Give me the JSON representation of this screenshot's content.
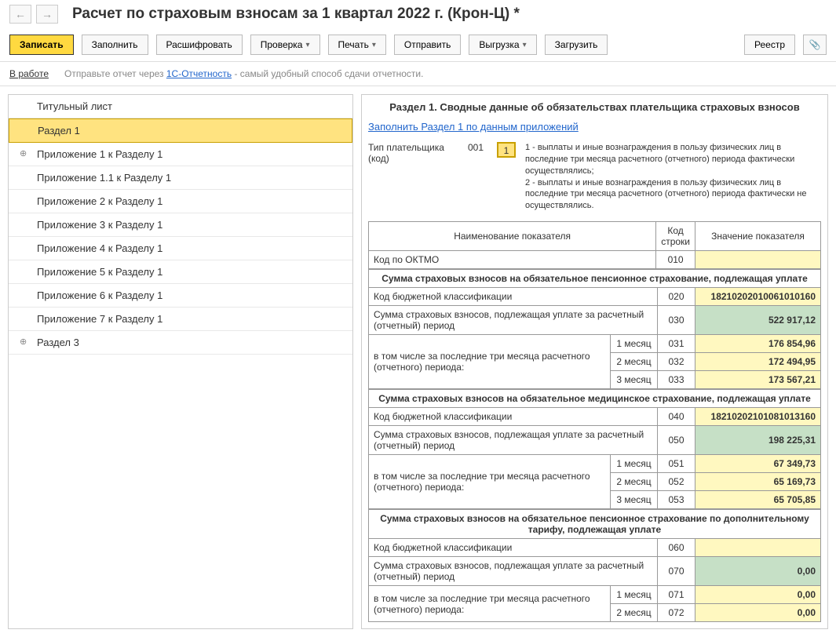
{
  "title": "Расчет по страховым взносам за 1 квартал 2022 г. (Крон-Ц) *",
  "toolbar": {
    "save": "Записать",
    "fill": "Заполнить",
    "decrypt": "Расшифровать",
    "check": "Проверка",
    "print": "Печать",
    "send": "Отправить",
    "export": "Выгрузка",
    "load": "Загрузить",
    "registry": "Реестр"
  },
  "status": {
    "label": "В работе",
    "hint_prefix": "Отправьте отчет через ",
    "hint_link": "1С-Отчетность",
    "hint_suffix": " - самый удобный способ сдачи отчетности."
  },
  "nav": {
    "items": [
      "Титульный лист",
      "Раздел 1",
      "Приложение 1 к Разделу 1",
      "Приложение 1.1 к Разделу 1",
      "Приложение 2 к Разделу 1",
      "Приложение 3 к Разделу 1",
      "Приложение 4 к Разделу 1",
      "Приложение 5 к Разделу 1",
      "Приложение 6 к Разделу 1",
      "Приложение 7 к Разделу 1",
      "Раздел 3"
    ]
  },
  "main": {
    "section_title": "Раздел 1. Сводные данные об обязательствах плательщика страховых взносов",
    "fill_link": "Заполнить Раздел 1 по данным приложений",
    "payer": {
      "label": "Тип плательщика (код)",
      "code": "001",
      "value": "1",
      "desc": "1 - выплаты и иные вознаграждения в пользу физических лиц в последние три месяца расчетного (отчетного) периода фактически осуществлялись;\n2 - выплаты и иные вознаграждения в пользу физических лиц в последние три месяца расчетного (отчетного) периода фактически не осуществлялись."
    },
    "headers": {
      "name": "Наименование показателя",
      "code": "Код строки",
      "value": "Значение показателя"
    },
    "row_oktmo": {
      "name": "Код по ОКТМО",
      "code": "010",
      "value": ""
    },
    "groups": [
      {
        "title": "Сумма страховых взносов на обязательное пенсионное страхование, подлежащая уплате",
        "kbk": {
          "name": "Код бюджетной классификации",
          "code": "020",
          "value": "18210202010061010160",
          "bg": "yellow"
        },
        "total": {
          "name": "Сумма страховых взносов, подлежащая уплате за расчетный (отчетный) период",
          "code": "030",
          "value": "522 917,12",
          "bg": "green"
        },
        "months_label": "в том числе за последние три месяца расчетного (отчетного) периода:",
        "months": [
          {
            "label": "1 месяц",
            "code": "031",
            "value": "176 854,96"
          },
          {
            "label": "2 месяц",
            "code": "032",
            "value": "172 494,95"
          },
          {
            "label": "3 месяц",
            "code": "033",
            "value": "173 567,21"
          }
        ]
      },
      {
        "title": "Сумма страховых взносов на обязательное медицинское страхование, подлежащая уплате",
        "kbk": {
          "name": "Код бюджетной классификации",
          "code": "040",
          "value": "18210202101081013160",
          "bg": "yellow"
        },
        "total": {
          "name": "Сумма страховых взносов, подлежащая уплате за расчетный (отчетный) период",
          "code": "050",
          "value": "198 225,31",
          "bg": "green"
        },
        "months_label": "в том числе за последние три месяца расчетного (отчетного) периода:",
        "months": [
          {
            "label": "1 месяц",
            "code": "051",
            "value": "67 349,73"
          },
          {
            "label": "2 месяц",
            "code": "052",
            "value": "65 169,73"
          },
          {
            "label": "3 месяц",
            "code": "053",
            "value": "65 705,85"
          }
        ]
      },
      {
        "title": "Сумма страховых взносов на обязательное пенсионное страхование по дополнительному тарифу, подлежащая уплате",
        "kbk": {
          "name": "Код бюджетной классификации",
          "code": "060",
          "value": "",
          "bg": "yellow"
        },
        "total": {
          "name": "Сумма страховых взносов, подлежащая уплате за расчетный (отчетный) период",
          "code": "070",
          "value": "0,00",
          "bg": "green"
        },
        "months_label": "в том числе за последние три месяца расчетного (отчетного) периода:",
        "months": [
          {
            "label": "1 месяц",
            "code": "071",
            "value": "0,00"
          },
          {
            "label": "2 месяц",
            "code": "072",
            "value": "0,00"
          }
        ]
      }
    ]
  }
}
